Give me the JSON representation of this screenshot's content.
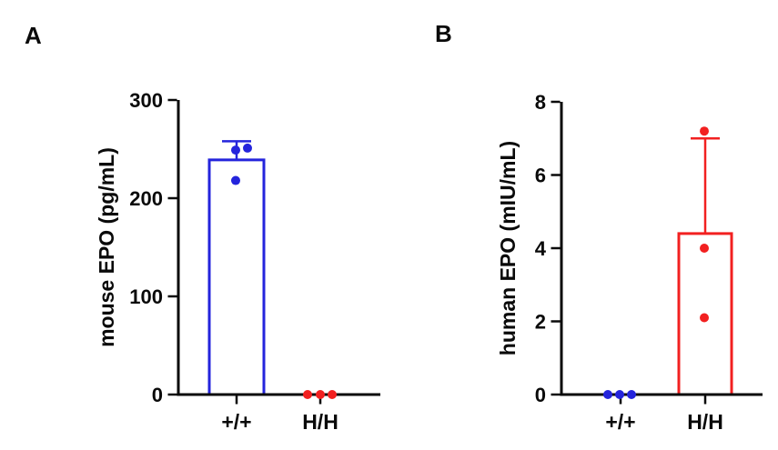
{
  "figure": {
    "background": "#ffffff",
    "axis_color": "#0a0a0a"
  },
  "chart_data": [
    {
      "type": "bar",
      "panel_label": "A",
      "title": "",
      "xlabel": "",
      "ylabel": "mouse EPO (pg/mL)",
      "ylim": [
        0,
        300
      ],
      "yticks": [
        "0",
        "100",
        "200",
        "300"
      ],
      "grid": false,
      "legend": "none",
      "error_bar": "mean+SD",
      "categories": [
        "+/+",
        "H/H"
      ],
      "series": [
        {
          "name": "+/+",
          "color": "#2424DC",
          "mean": 239,
          "sd": 19,
          "points": [
            249,
            251,
            218
          ],
          "point_dx": [
            -1,
            12,
            -1
          ]
        },
        {
          "name": "H/H",
          "color": "#F22020",
          "mean": 0,
          "sd": 0,
          "points": [
            0,
            0,
            0
          ],
          "point_dx": [
            -14,
            0,
            13
          ]
        }
      ]
    },
    {
      "type": "bar",
      "panel_label": "B",
      "title": "",
      "xlabel": "",
      "ylabel": "human EPO (mIU/mL)",
      "ylim": [
        0,
        8
      ],
      "yticks": [
        "0",
        "2",
        "4",
        "6",
        "8"
      ],
      "grid": false,
      "legend": "none",
      "error_bar": "mean+SD",
      "categories": [
        "+/+",
        "H/H"
      ],
      "series": [
        {
          "name": "+/+",
          "color": "#2424DC",
          "mean": 0,
          "sd": 0,
          "points": [
            0,
            0,
            0
          ],
          "point_dx": [
            -14,
            -1,
            12
          ]
        },
        {
          "name": "H/H",
          "color": "#F22020",
          "mean": 4.4,
          "sd": 2.6,
          "points": [
            7.2,
            4.0,
            2.1
          ],
          "point_dx": [
            -1,
            -1,
            -1
          ]
        }
      ]
    }
  ]
}
